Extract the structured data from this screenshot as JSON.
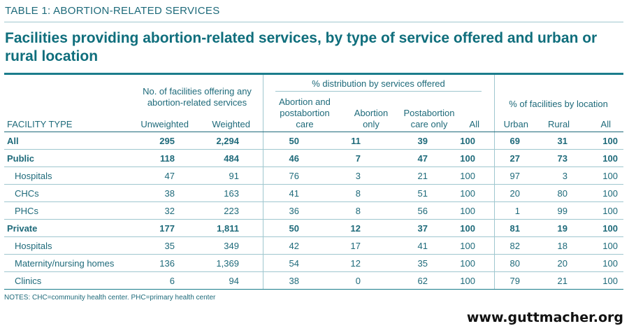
{
  "table_label": "TABLE 1: ABORTION-RELATED SERVICES",
  "title": "Facilities providing abortion-related services, by type of service offered and urban or rural location",
  "headers": {
    "facility_type": "FACILITY TYPE",
    "group_facilities": "No. of facilities offering any abortion-related services",
    "group_distribution": "% distribution by services offered",
    "group_location": "% of facilities by location",
    "unweighted": "Unweighted",
    "weighted": "Weighted",
    "abortion_postabortion": "Abortion and postabortion care",
    "abortion_only": "Abortion only",
    "postabortion_only": "Postabortion care only",
    "all_dist": "All",
    "urban": "Urban",
    "rural": "Rural",
    "all_loc": "All"
  },
  "rows": [
    {
      "name": "All",
      "bold": true,
      "indent": false,
      "values": [
        "295",
        "2,294",
        "50",
        "11",
        "39",
        "100",
        "69",
        "31",
        "100"
      ]
    },
    {
      "name": "Public",
      "bold": true,
      "indent": false,
      "values": [
        "118",
        "484",
        "46",
        "7",
        "47",
        "100",
        "27",
        "73",
        "100"
      ]
    },
    {
      "name": "Hospitals",
      "bold": false,
      "indent": true,
      "values": [
        "47",
        "91",
        "76",
        "3",
        "21",
        "100",
        "97",
        "3",
        "100"
      ]
    },
    {
      "name": "CHCs",
      "bold": false,
      "indent": true,
      "values": [
        "38",
        "163",
        "41",
        "8",
        "51",
        "100",
        "20",
        "80",
        "100"
      ]
    },
    {
      "name": "PHCs",
      "bold": false,
      "indent": true,
      "values": [
        "32",
        "223",
        "36",
        "8",
        "56",
        "100",
        "1",
        "99",
        "100"
      ]
    },
    {
      "name": "Private",
      "bold": true,
      "indent": false,
      "values": [
        "177",
        "1,811",
        "50",
        "12",
        "37",
        "100",
        "81",
        "19",
        "100"
      ]
    },
    {
      "name": "Hospitals",
      "bold": false,
      "indent": true,
      "values": [
        "35",
        "349",
        "42",
        "17",
        "41",
        "100",
        "82",
        "18",
        "100"
      ]
    },
    {
      "name": "Maternity/nursing homes",
      "bold": false,
      "indent": true,
      "values": [
        "136",
        "1,369",
        "54",
        "12",
        "35",
        "100",
        "80",
        "20",
        "100"
      ]
    },
    {
      "name": "Clinics",
      "bold": false,
      "indent": true,
      "values": [
        "6",
        "94",
        "38",
        "0",
        "62",
        "100",
        "79",
        "21",
        "100"
      ]
    }
  ],
  "notes": "NOTES: CHC=community health center. PHC=primary health center",
  "website": "www.guttmacher.org"
}
